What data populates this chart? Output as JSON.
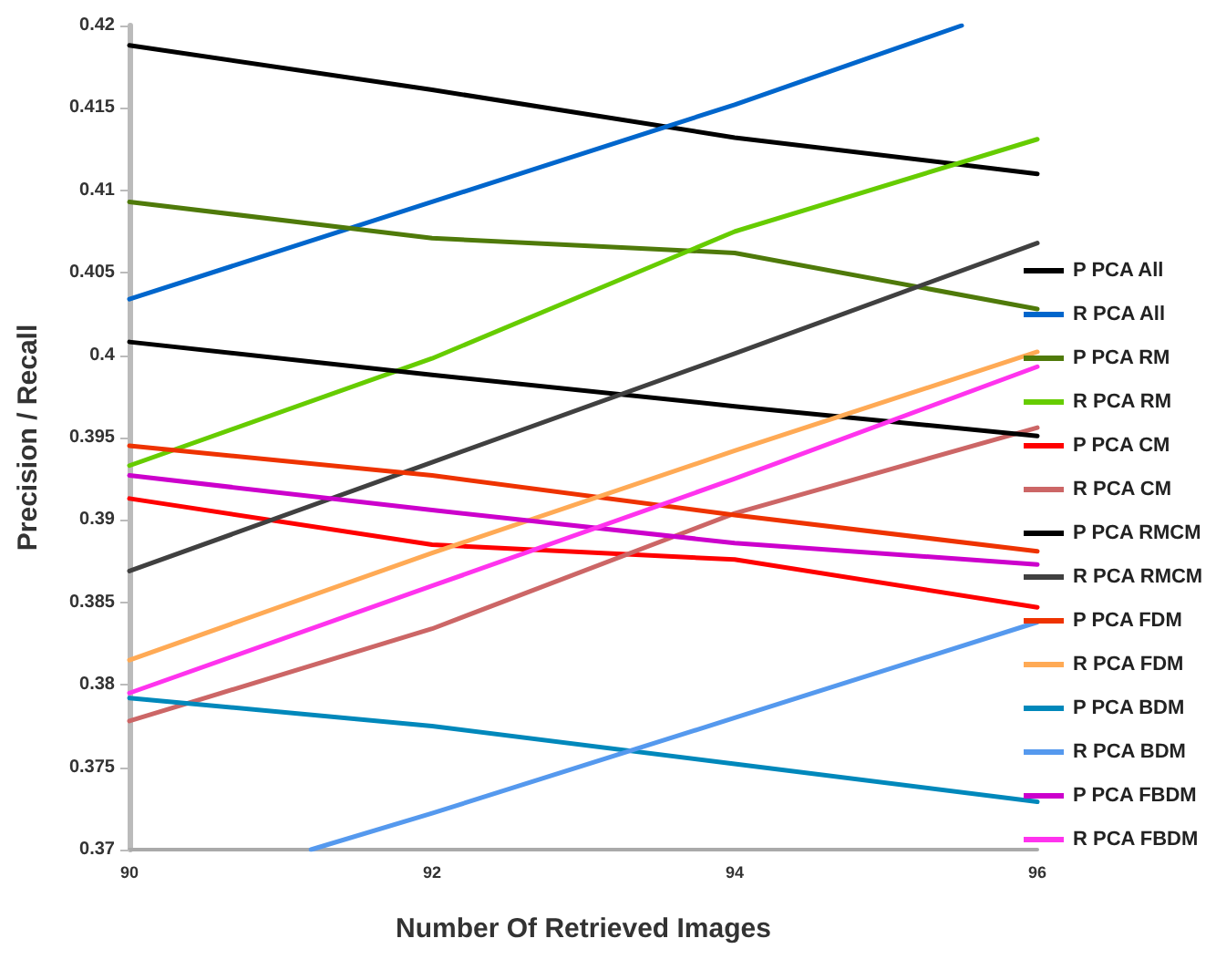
{
  "chart_data": {
    "type": "line",
    "xlabel": "Number Of Retrieved Images",
    "ylabel": "Precision / Recall",
    "x": [
      90,
      92,
      94,
      96
    ],
    "xlim": [
      90,
      96
    ],
    "xticks": [
      90,
      92,
      94,
      96
    ],
    "ylim": [
      0.37,
      0.42
    ],
    "yticks": [
      0.37,
      0.375,
      0.38,
      0.385,
      0.39,
      0.395,
      0.4,
      0.405,
      0.41,
      0.415,
      0.42
    ],
    "grid": false,
    "legend": "right",
    "marker": "none",
    "line_style": "solid",
    "series": [
      {
        "name": "P PCA All",
        "color": "#000000",
        "values": [
          0.4188,
          0.4161,
          0.4132,
          0.411
        ]
      },
      {
        "name": "R PCA All",
        "color": "#0066cc",
        "x": [
          90,
          92,
          94,
          95.5
        ],
        "values": [
          0.4034,
          0.4093,
          0.4152,
          0.42
        ]
      },
      {
        "name": "P PCA RM",
        "color": "#4f7a0a",
        "values": [
          0.4093,
          0.4071,
          0.4062,
          0.4028
        ]
      },
      {
        "name": "R PCA RM",
        "color": "#66cc00",
        "values": [
          0.3933,
          0.3998,
          0.4075,
          0.4131
        ]
      },
      {
        "name": "P PCA CM",
        "color": "#ff0000",
        "values": [
          0.3913,
          0.3885,
          0.3876,
          0.3847
        ]
      },
      {
        "name": "R PCA CM",
        "color": "#cc6666",
        "values": [
          0.3778,
          0.3834,
          0.3904,
          0.3956
        ]
      },
      {
        "name": "P PCA RMCM",
        "color": "#000000",
        "values": [
          0.4008,
          0.3988,
          0.3969,
          0.3951
        ]
      },
      {
        "name": "R PCA RMCM",
        "color": "#404040",
        "values": [
          0.3869,
          0.3935,
          0.4001,
          0.4068
        ]
      },
      {
        "name": "P PCA FDM",
        "color": "#ee3300",
        "values": [
          0.3945,
          0.3927,
          0.3903,
          0.3881
        ]
      },
      {
        "name": "R PCA FDM",
        "color": "#ffaa55",
        "values": [
          0.3815,
          0.388,
          0.3942,
          0.4002
        ]
      },
      {
        "name": "P PCA BDM",
        "color": "#0088bb",
        "values": [
          0.3792,
          0.3775,
          0.3752,
          0.3729
        ]
      },
      {
        "name": "R PCA BDM",
        "color": "#5599ee",
        "x": [
          91.2,
          92,
          94,
          96
        ],
        "values": [
          0.37,
          0.3722,
          0.378,
          0.3838
        ]
      },
      {
        "name": "P PCA FBDM",
        "color": "#cc00cc",
        "values": [
          0.3927,
          0.3906,
          0.3886,
          0.3873
        ]
      },
      {
        "name": "R PCA FBDM",
        "color": "#ff33ee",
        "values": [
          0.3795,
          0.386,
          0.3925,
          0.3993
        ]
      }
    ]
  }
}
